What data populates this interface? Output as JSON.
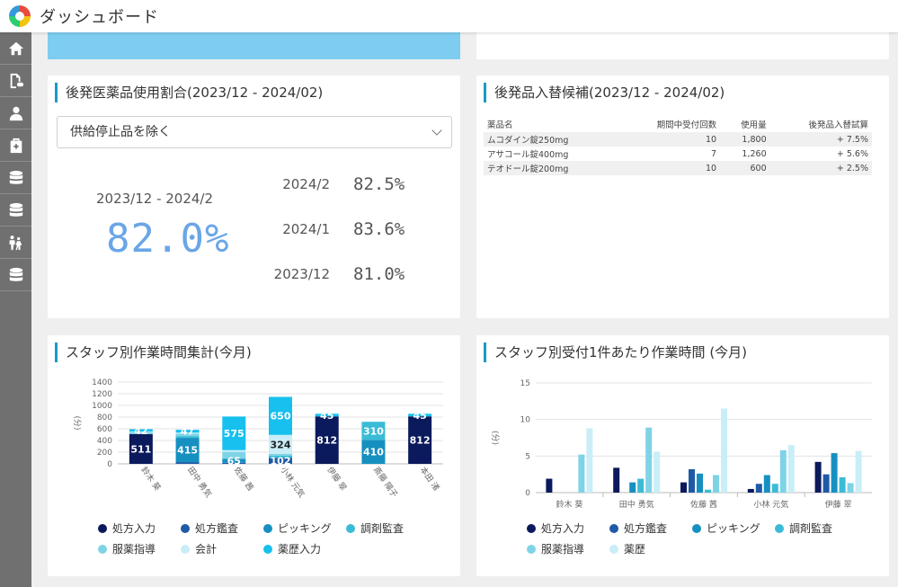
{
  "header": {
    "app_title": "ダッシュボード"
  },
  "sidebar": {
    "items": [
      {
        "icon": "home-icon"
      },
      {
        "icon": "document-pill-icon"
      },
      {
        "icon": "person-icon"
      },
      {
        "icon": "pharmacy-bag-icon"
      },
      {
        "icon": "database-icon"
      },
      {
        "icon": "database-icon"
      },
      {
        "icon": "family-icon"
      },
      {
        "icon": "database-icon"
      }
    ]
  },
  "ratio_card": {
    "title": "後発医薬品使用割合(2023/12 - 2024/02)",
    "select_value": "供給停止品を除く",
    "period_label": "2023/12 - 2024/2",
    "period_value": "82.0%",
    "months": [
      {
        "month": "2024/2",
        "value": "82.5%"
      },
      {
        "month": "2024/1",
        "value": "83.6%"
      },
      {
        "month": "2023/12",
        "value": "81.0%"
      }
    ]
  },
  "candidate_card": {
    "title": "後発品入替候補(2023/12 - 2024/02)",
    "headers": [
      "薬品名",
      "期間中受付回数",
      "使用量",
      "後発品入替試算"
    ],
    "rows": [
      [
        "ムコダイン錠250mg",
        "10",
        "1,800",
        "+ 7.5%"
      ],
      [
        "アサコール錠400mg",
        "7",
        "1,260",
        "+ 5.6%"
      ],
      [
        "テオドール錠200mg",
        "10",
        "600",
        "+ 2.5%"
      ]
    ]
  },
  "staff_total_card": {
    "title": "スタッフ別作業時間集計(今月)",
    "legend": [
      "処方入力",
      "処方鑑査",
      "ピッキング",
      "調剤監査",
      "服薬指導",
      "会計",
      "薬歴入力"
    ]
  },
  "staff_per_card": {
    "title": "スタッフ別受付1件あたり作業時間 (今月)",
    "legend": [
      "処方入力",
      "処方鑑査",
      "ピッキング",
      "調剤監査",
      "服薬指導",
      "薬歴"
    ]
  },
  "chart_data": [
    {
      "type": "bar",
      "stacked": true,
      "ylabel": "(分)",
      "ylim": [
        0,
        1400
      ],
      "yticks": [
        0,
        200,
        400,
        600,
        800,
        1000,
        1200,
        1400
      ],
      "grid": true,
      "legend_position": "bottom",
      "categories": [
        "鈴木 葵",
        "田中 勇気",
        "佐藤 茜",
        "小林 元気",
        "伊藤 翠",
        "斎藤 陽子",
        "本田 渚"
      ],
      "series": [
        {
          "name": "処方入力",
          "color": "#0b1a5c",
          "values": [
            511,
            0,
            0,
            0,
            812,
            0,
            812
          ],
          "labels": [
            "511",
            "",
            "",
            "",
            "812",
            "",
            "812"
          ]
        },
        {
          "name": "処方鑑査",
          "color": "#1f5aa6",
          "values": [
            0,
            30,
            20,
            102,
            0,
            0,
            0
          ],
          "labels": [
            "",
            "",
            "",
            "102",
            "",
            "",
            ""
          ]
        },
        {
          "name": "ピッキング",
          "color": "#1690c0",
          "values": [
            0,
            415,
            65,
            0,
            0,
            410,
            0
          ],
          "labels": [
            "",
            "415",
            "65",
            "",
            "",
            "410",
            ""
          ]
        },
        {
          "name": "調剤監査",
          "color": "#3bbcd6",
          "values": [
            0,
            30,
            0,
            40,
            0,
            310,
            0
          ],
          "labels": [
            "",
            "",
            "",
            "",
            "",
            "310",
            ""
          ]
        },
        {
          "name": "服薬指導",
          "color": "#7fd3e6",
          "values": [
            30,
            40,
            120,
            30,
            0,
            0,
            0
          ],
          "labels": [
            "",
            "",
            "",
            "",
            "",
            "",
            ""
          ]
        },
        {
          "name": "会計",
          "color": "#c9eef7",
          "values": [
            10,
            20,
            30,
            324,
            0,
            0,
            0
          ],
          "labels": [
            "",
            "",
            "",
            "324",
            "",
            "",
            ""
          ]
        },
        {
          "name": "薬歴入力",
          "color": "#17c0ee",
          "values": [
            42,
            47,
            575,
            650,
            45,
            0,
            45
          ],
          "labels": [
            "42",
            "47",
            "575",
            "650",
            "45",
            "",
            "45"
          ]
        }
      ]
    },
    {
      "type": "bar",
      "stacked": false,
      "ylabel": "(分)",
      "ylim": [
        0,
        15
      ],
      "yticks": [
        0,
        5,
        10,
        15
      ],
      "grid": true,
      "legend_position": "bottom",
      "categories": [
        "鈴木 葵",
        "田中 勇気",
        "佐藤 茜",
        "小林 元気",
        "伊藤 翠"
      ],
      "series": [
        {
          "name": "処方入力",
          "color": "#0b1a5c",
          "values": [
            1.9,
            3.4,
            1.4,
            0.5,
            4.2
          ]
        },
        {
          "name": "処方鑑査",
          "color": "#1f5aa6",
          "values": [
            0,
            0,
            3.2,
            1.2,
            2.5
          ]
        },
        {
          "name": "ピッキング",
          "color": "#1690c0",
          "values": [
            0,
            1.4,
            2.6,
            2.4,
            5.4
          ]
        },
        {
          "name": "調剤監査",
          "color": "#3bbcd6",
          "values": [
            0,
            1.9,
            0.4,
            1.2,
            2.1
          ]
        },
        {
          "name": "服薬指導",
          "color": "#7fd3e6",
          "values": [
            5.2,
            8.9,
            2.4,
            5.8,
            1.3
          ]
        },
        {
          "name": "薬歴",
          "color": "#c9eef7",
          "values": [
            8.8,
            5.6,
            11.5,
            6.5,
            5.7
          ]
        }
      ]
    }
  ]
}
